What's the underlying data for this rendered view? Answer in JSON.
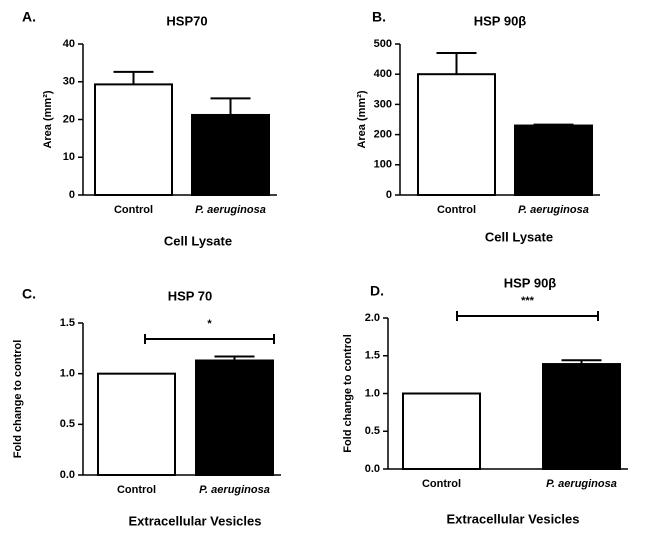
{
  "chart_data": [
    {
      "type": "bar",
      "label": "A.",
      "title": "HSP70",
      "ylabel": "Area (mm²)",
      "xlabel": "Cell Lysate",
      "categories": [
        "Control",
        "P. aeruginosa"
      ],
      "values": [
        29.3,
        21.2
      ],
      "errors": [
        3.3,
        4.4
      ],
      "colors": [
        "#ffffff",
        "#000000"
      ],
      "ylim": [
        0,
        40
      ],
      "yticks": [
        0,
        10,
        20,
        30,
        40
      ]
    },
    {
      "type": "bar",
      "label": "B.",
      "title": "HSP 90β",
      "ylabel": "Area (mm²)",
      "xlabel": "Cell Lysate",
      "categories": [
        "Control",
        "P. aeruginosa"
      ],
      "values": [
        400,
        230
      ],
      "errors": [
        70,
        3
      ],
      "colors": [
        "#ffffff",
        "#000000"
      ],
      "ylim": [
        0,
        500
      ],
      "yticks": [
        0,
        100,
        200,
        300,
        400,
        500
      ]
    },
    {
      "type": "bar",
      "label": "C.",
      "title": "HSP 70",
      "ylabel": "Fold change to control",
      "xlabel": "Extracellular Vesicles",
      "categories": [
        "Control",
        "P. aeruginosa"
      ],
      "values": [
        1.0,
        1.13
      ],
      "errors": [
        0,
        0.04
      ],
      "colors": [
        "#ffffff",
        "#000000"
      ],
      "ylim": [
        0,
        1.5
      ],
      "yticks": [
        {
          "value": 0,
          "label": "0.0"
        },
        0.5,
        {
          "value": 1,
          "label": "1.0"
        },
        1.5
      ],
      "significance": "*"
    },
    {
      "type": "bar",
      "label": "D.",
      "title": "HSP 90β",
      "ylabel": "Fold change to control",
      "xlabel": "Extracellular Vesicles",
      "categories": [
        "Control",
        "P. aeruginosa"
      ],
      "values": [
        1.0,
        1.39
      ],
      "errors": [
        0,
        0.05
      ],
      "colors": [
        "#ffffff",
        "#000000"
      ],
      "ylim": [
        0,
        2.0
      ],
      "yticks": [
        {
          "value": 0,
          "label": "0.0"
        },
        0.5,
        {
          "value": 1,
          "label": "1.0"
        },
        1.5,
        {
          "value": 2,
          "label": "2.0"
        }
      ],
      "significance": "***"
    }
  ]
}
